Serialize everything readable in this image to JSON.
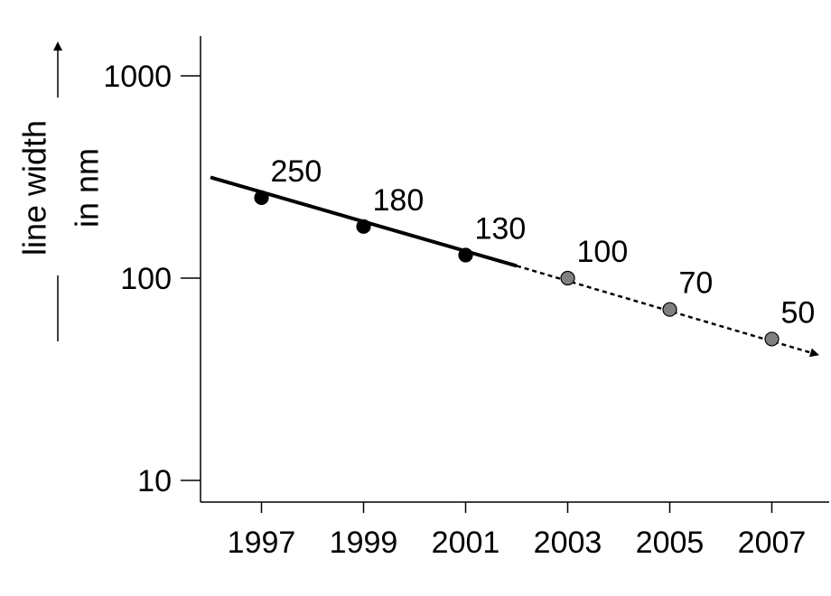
{
  "chart_data": {
    "type": "scatter",
    "title": "",
    "xlabel": "",
    "ylabel": [
      "line width",
      "in nm"
    ],
    "y_scale": "log",
    "ylim": [
      10,
      1000
    ],
    "xlim": [
      1996,
      2008
    ],
    "x_ticks": [
      1997,
      1999,
      2001,
      2003,
      2005,
      2007
    ],
    "y_ticks": [
      10,
      100,
      1000
    ],
    "grid": false,
    "series": [
      {
        "x": [
          1997,
          1999,
          2001
        ],
        "y": [
          250,
          180,
          130
        ],
        "labels": [
          "250",
          "180",
          "130"
        ],
        "color": "#000000"
      },
      {
        "x": [
          2003,
          2005,
          2007
        ],
        "y": [
          100,
          70,
          50
        ],
        "labels": [
          "100",
          "70",
          "50"
        ],
        "color": "#808080"
      }
    ],
    "trend_lines": [
      {
        "style": "solid",
        "x": [
          1996,
          2002
        ],
        "y": [
          315,
          115
        ]
      },
      {
        "style": "dashed-arrow",
        "x": [
          2002,
          2008
        ],
        "y": [
          115,
          41
        ]
      }
    ],
    "y_axis_arrow": true
  }
}
